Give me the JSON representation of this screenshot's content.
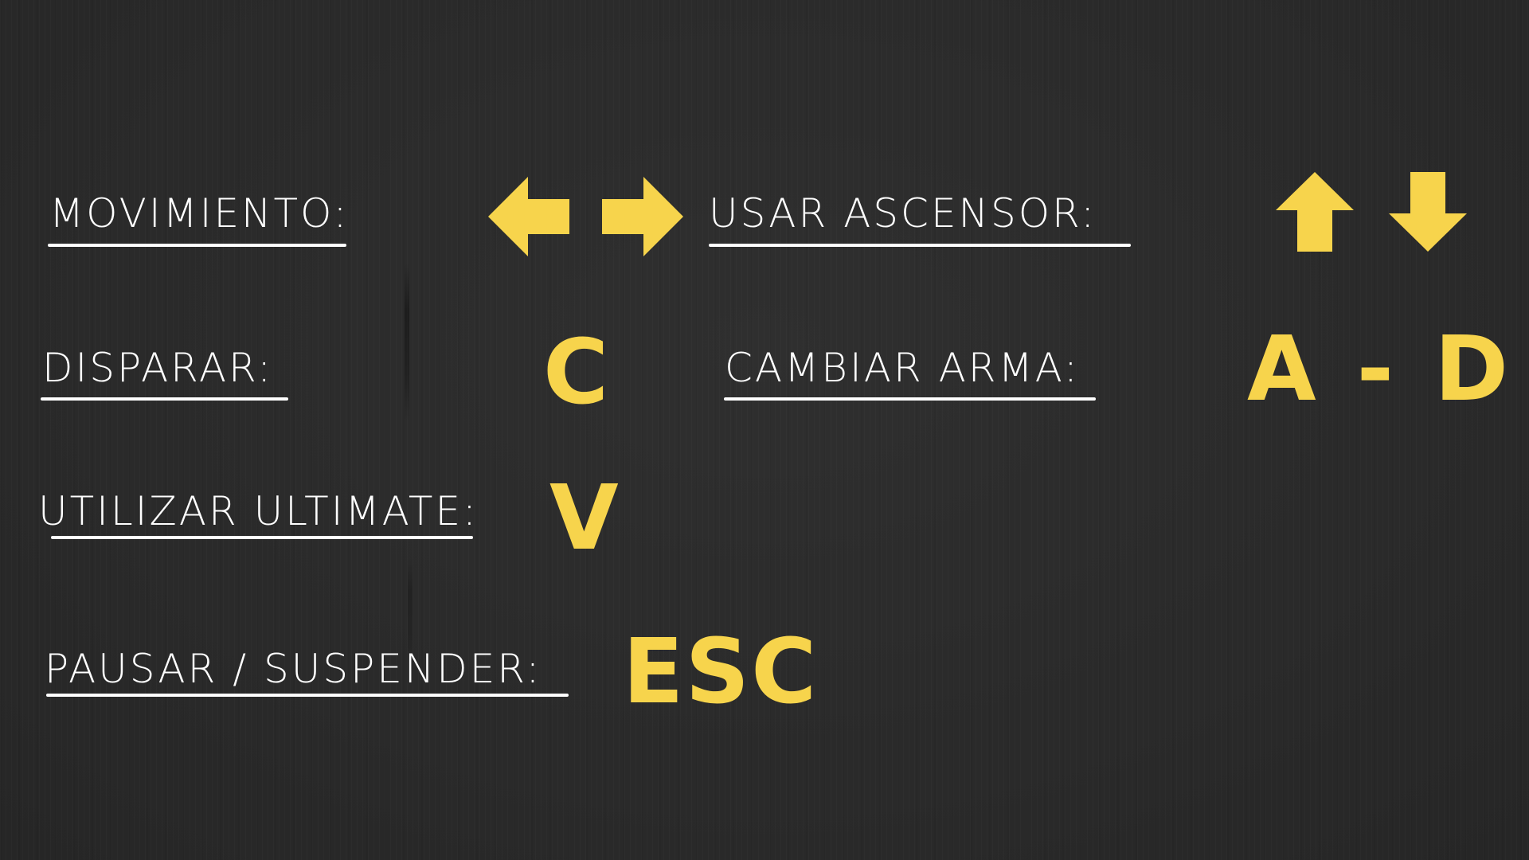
{
  "accent_color": "#f7d44c",
  "text_color": "#ffffff",
  "background_color": "#2b2b2b",
  "controls": {
    "movement": {
      "label": "MOVIMIENTO:",
      "icons": [
        "arrow-left-icon",
        "arrow-right-icon"
      ]
    },
    "elevator": {
      "label": "USAR ASCENSOR:",
      "icons": [
        "arrow-up-icon",
        "arrow-down-icon"
      ]
    },
    "shoot": {
      "label": "DISPARAR:",
      "key": "C"
    },
    "switch_weapon": {
      "label": "CAMBIAR ARMA:",
      "key": "A - D"
    },
    "ultimate": {
      "label": "UTILIZAR ULTIMATE:",
      "key": "V"
    },
    "pause": {
      "label": "PAUSAR / SUSPENDER:",
      "key": "ESC"
    }
  }
}
